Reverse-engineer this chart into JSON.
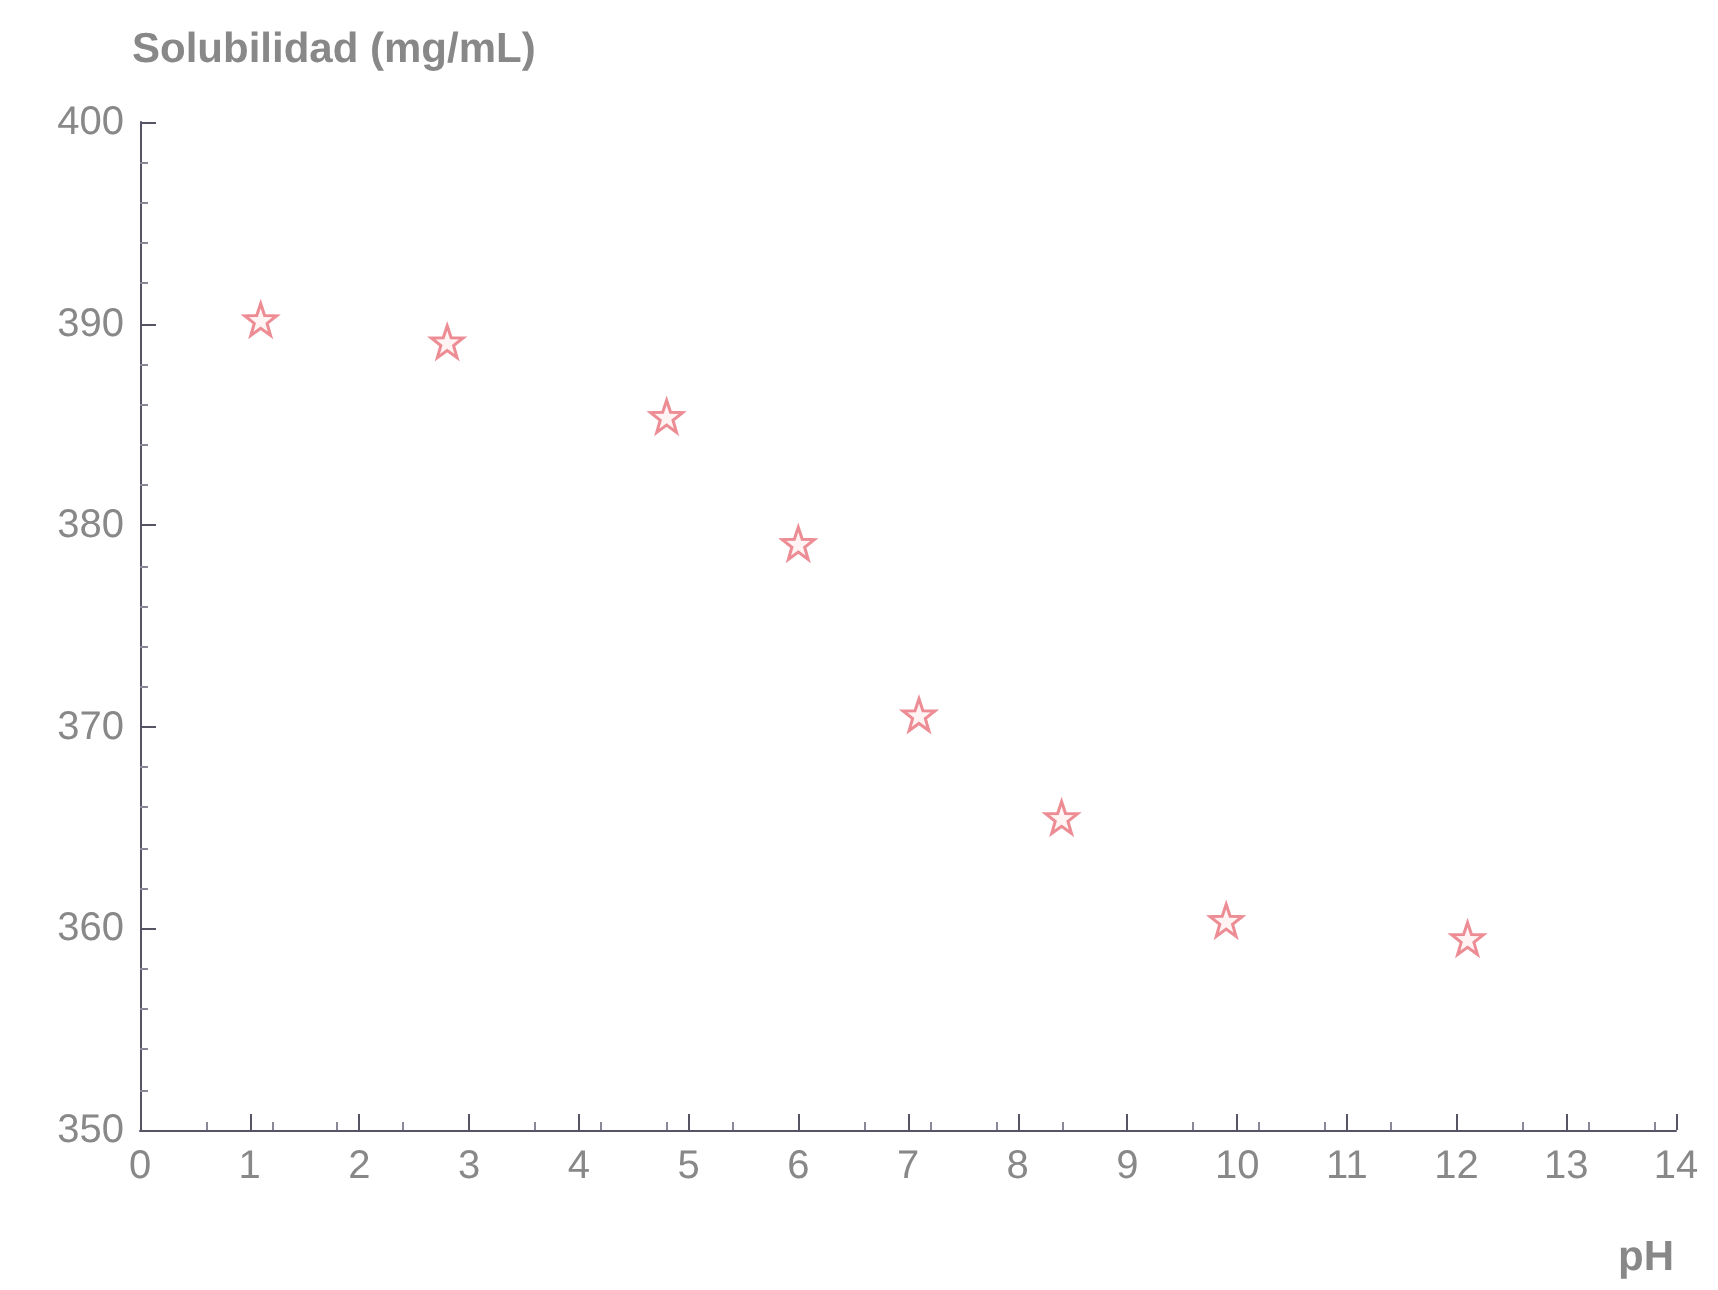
{
  "chart_data": {
    "type": "scatter",
    "ylabel": "Solubilidad (mg/mL)",
    "xlabel": "pH",
    "x": [
      1.1,
      2.8,
      4.8,
      6.0,
      7.1,
      8.4,
      9.9,
      12.1
    ],
    "series": [
      {
        "color": "#e8707a",
        "values": [
          390.2,
          389.1,
          385.4,
          379.1,
          370.6,
          365.5,
          360.4,
          359.5
        ]
      }
    ],
    "xlim": [
      0,
      14
    ],
    "xticks": [
      0,
      1,
      2,
      3,
      4,
      5,
      6,
      7,
      8,
      9,
      10,
      11,
      12,
      13,
      14
    ],
    "ylim": [
      350,
      400
    ],
    "yticks": [
      350,
      360,
      370,
      380,
      390,
      400
    ],
    "marker": "star"
  }
}
